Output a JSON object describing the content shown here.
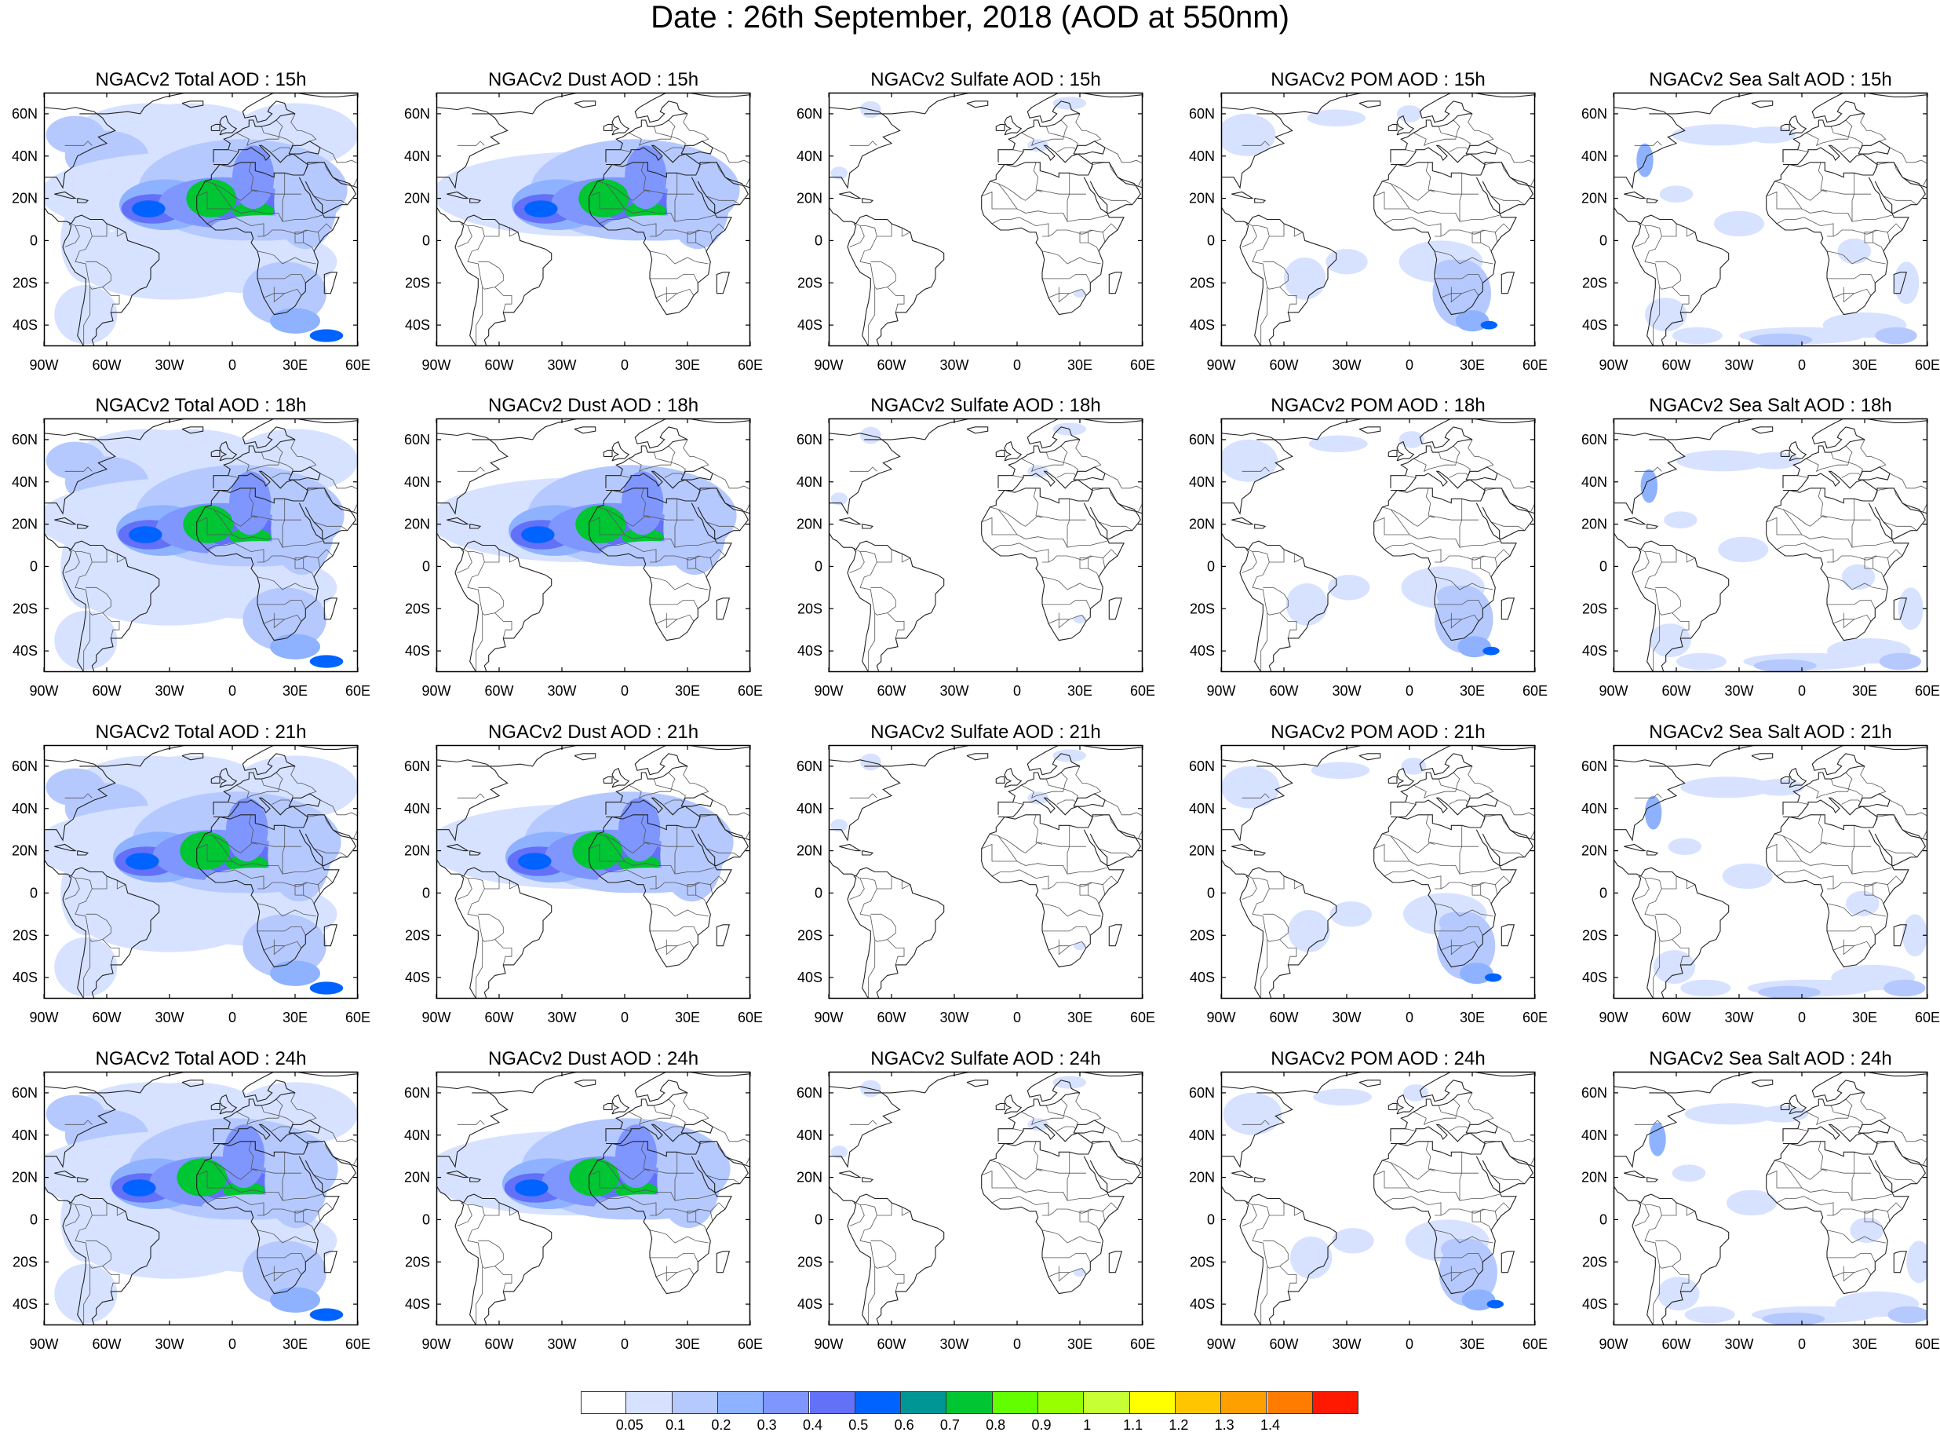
{
  "title": "Date : 26th September, 2018 (AOD at 550nm)",
  "panel_titles": [
    [
      "NGACv2 Total AOD : 15h",
      "NGACv2 Dust AOD : 15h",
      "NGACv2 Sulfate AOD : 15h",
      "NGACv2 POM AOD : 15h",
      "NGACv2 Sea Salt AOD : 15h"
    ],
    [
      "NGACv2 Total AOD : 18h",
      "NGACv2 Dust AOD : 18h",
      "NGACv2 Sulfate AOD : 18h",
      "NGACv2 POM AOD : 18h",
      "NGACv2 Sea Salt AOD : 18h"
    ],
    [
      "NGACv2 Total AOD : 21h",
      "NGACv2 Dust AOD : 21h",
      "NGACv2 Sulfate AOD : 21h",
      "NGACv2 POM AOD : 21h",
      "NGACv2 Sea Salt AOD : 21h"
    ],
    [
      "NGACv2 Total AOD : 24h",
      "NGACv2 Dust AOD : 24h",
      "NGACv2 Sulfate AOD : 24h",
      "NGACv2 POM AOD : 24h",
      "NGACv2 Sea Salt  AOD : 24h"
    ]
  ],
  "lon_ticks": [
    "90W",
    "60W",
    "30W",
    "0",
    "30E",
    "60E"
  ],
  "lat_ticks": [
    "60N",
    "40N",
    "20N",
    "0",
    "20S",
    "40S"
  ],
  "lon_range": [
    -90,
    60
  ],
  "lat_range": [
    -50,
    70
  ],
  "colorbar": {
    "colors": [
      "#ffffff",
      "#d6e2ff",
      "#b5c9ff",
      "#8eb2ff",
      "#7f96ff",
      "#6370f8",
      "#0063ff",
      "#009696",
      "#00c633",
      "#63ff00",
      "#96ff00",
      "#c6ff33",
      "#ffff00",
      "#ffc600",
      "#ffa000",
      "#ff7c00",
      "#ff1900"
    ],
    "labels": [
      "0.05",
      "0.1",
      "0.2",
      "0.3",
      "0.4",
      "0.5",
      "0.6",
      "0.7",
      "0.8",
      "0.9",
      "1",
      "1.1",
      "1.2",
      "1.3",
      "1.4"
    ]
  }
}
